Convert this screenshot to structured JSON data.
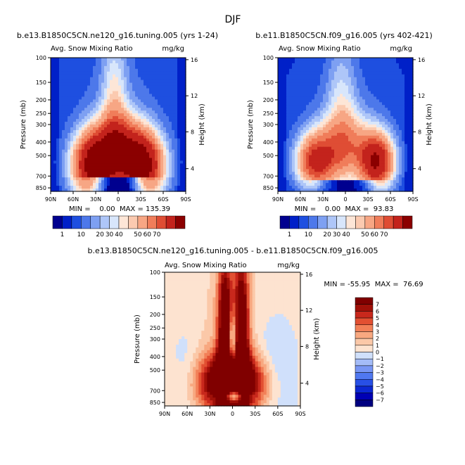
{
  "page_title": "DJF",
  "chart_data": [
    {
      "type": "heatmap",
      "title": "b.e13.B1850C5CN.ne120_g16.tuning.005 (yrs 1-24)",
      "subtitle_left": "Avg. Snow Mixing Ratio",
      "subtitle_right": "mg/kg",
      "ylabel": "Pressure (mb)",
      "ylabel_right": "Height (km)",
      "xticks": [
        "90N",
        "60N",
        "30N",
        "0",
        "30S",
        "60S",
        "90S"
      ],
      "yticks": [
        "100",
        "150",
        "200",
        "250",
        "300",
        "400",
        "500",
        "700",
        "850"
      ],
      "yticks_right": [
        "16",
        "12",
        "8",
        "4"
      ],
      "stats": "MIN =    0.00  MAX = 135.39",
      "levels": [
        1,
        10,
        20,
        30,
        40,
        50,
        60,
        70
      ],
      "colorbar_labels": [
        "1",
        "10",
        "20",
        "30",
        "40",
        "50",
        "60",
        "70"
      ],
      "palette": [
        "#00008f",
        "#0020c8",
        "#1e4fe0",
        "#4d78ea",
        "#7ea0f2",
        "#aec6f8",
        "#d8e6fb",
        "#fde6d7",
        "#fbcab0",
        "#f7a684",
        "#f07d5a",
        "#df4d34",
        "#c3231c",
        "#8b0000"
      ],
      "field": "high"
    },
    {
      "type": "heatmap",
      "title": "b.e11.B1850C5CN.f09_g16.005 (yrs 402-421)",
      "subtitle_left": "Avg. Snow Mixing Ratio",
      "subtitle_right": "mg/kg",
      "ylabel": "Pressure (mb)",
      "ylabel_right": "Height (km)",
      "xticks": [
        "90N",
        "60N",
        "30N",
        "0",
        "30S",
        "60S",
        "90S"
      ],
      "yticks": [
        "100",
        "150",
        "200",
        "250",
        "300",
        "400",
        "500",
        "700",
        "850"
      ],
      "yticks_right": [
        "16",
        "12",
        "8",
        "4"
      ],
      "stats": "MIN =    0.00  MAX =  93.83",
      "levels": [
        1,
        10,
        20,
        30,
        40,
        50,
        60,
        70
      ],
      "colorbar_labels": [
        "1",
        "10",
        "20",
        "30",
        "40",
        "50",
        "60",
        "70"
      ],
      "field": "low"
    },
    {
      "type": "heatmap",
      "title": "b.e13.B1850C5CN.ne120_g16.tuning.005 - b.e11.B1850C5CN.f09_g16.005",
      "subtitle_left": "Avg. Snow Mixing Ratio",
      "subtitle_right": "mg/kg",
      "ylabel": "Pressure (mb)",
      "ylabel_right": "Height (km)",
      "xticks": [
        "90N",
        "60N",
        "30N",
        "0",
        "30S",
        "60S",
        "90S"
      ],
      "yticks": [
        "100",
        "150",
        "200",
        "250",
        "300",
        "400",
        "500",
        "700",
        "850"
      ],
      "yticks_right": [
        "16",
        "12",
        "8",
        "4"
      ],
      "stats": "MIN = -55.95  MAX =  76.69",
      "levels": [
        -7,
        -6,
        -5,
        -4,
        -3,
        -2,
        -1,
        0,
        1,
        2,
        3,
        4,
        5,
        6,
        7
      ],
      "colorbar_labels": [
        "7",
        "6",
        "5",
        "4",
        "3",
        "2",
        "1",
        "0",
        "−1",
        "−2",
        "−3",
        "−4",
        "−5",
        "−6",
        "−7"
      ],
      "diff_palette": [
        "#000080",
        "#0000b4",
        "#0c28d2",
        "#2850e6",
        "#5078f0",
        "#7896f4",
        "#a4bcf8",
        "#d0e0fb",
        "#fde3d0",
        "#fbc8a8",
        "#f8a880",
        "#f28058",
        "#e25032",
        "#c8281c",
        "#a01008",
        "#800000"
      ],
      "field": "diff"
    }
  ]
}
